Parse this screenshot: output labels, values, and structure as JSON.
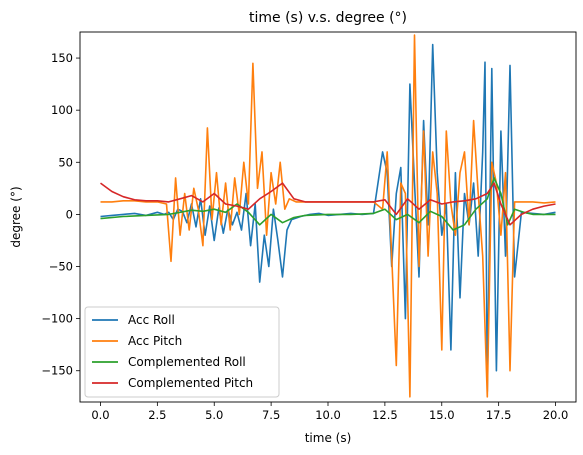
{
  "chart_data": {
    "type": "line",
    "title": "time (s) v.s. degree (°)",
    "xlabel": "time (s)",
    "ylabel": "degree (°)",
    "xlim": [
      -0.9,
      20.9
    ],
    "ylim": [
      -180,
      175
    ],
    "xticks": [
      0.0,
      2.5,
      5.0,
      7.5,
      10.0,
      12.5,
      15.0,
      17.5,
      20.0
    ],
    "xtick_labels": [
      "0.0",
      "2.5",
      "5.0",
      "7.5",
      "10.0",
      "12.5",
      "15.0",
      "17.5",
      "20.0"
    ],
    "yticks": [
      -150,
      -100,
      -50,
      0,
      50,
      100,
      150
    ],
    "ytick_labels": [
      "−150",
      "−100",
      "−50",
      "0",
      "50",
      "100",
      "150"
    ],
    "grid": false,
    "legend_position": "lower-left",
    "series": [
      {
        "name": "Acc Roll",
        "color": "#1f77b4",
        "x": [
          0,
          0.5,
          1,
          1.5,
          2,
          2.5,
          2.8,
          3.0,
          3.2,
          3.4,
          3.6,
          3.8,
          4.0,
          4.2,
          4.4,
          4.6,
          4.8,
          5.0,
          5.2,
          5.4,
          5.6,
          5.8,
          6.0,
          6.2,
          6.4,
          6.6,
          6.8,
          7.0,
          7.2,
          7.4,
          7.6,
          7.8,
          8.0,
          8.2,
          8.4,
          8.8,
          9.2,
          9.6,
          10.0,
          10.5,
          11.0,
          11.5,
          12.0,
          12.4,
          12.6,
          12.8,
          13.0,
          13.2,
          13.4,
          13.6,
          13.8,
          14.0,
          14.2,
          14.4,
          14.6,
          14.8,
          15.0,
          15.2,
          15.4,
          15.6,
          15.8,
          16.0,
          16.2,
          16.4,
          16.6,
          16.8,
          16.9,
          17.0,
          17.2,
          17.4,
          17.6,
          17.8,
          18.0,
          18.2,
          18.5,
          19.0,
          19.5,
          20.0
        ],
        "y": [
          -2,
          -1,
          0,
          1,
          -1,
          2,
          0,
          2,
          -5,
          5,
          3,
          -8,
          10,
          -12,
          15,
          -20,
          8,
          -25,
          6,
          -18,
          5,
          -10,
          2,
          -15,
          20,
          -30,
          10,
          -65,
          -20,
          -50,
          5,
          -25,
          -60,
          -15,
          -5,
          -2,
          0,
          1,
          -1,
          0,
          1,
          0,
          1,
          60,
          40,
          -50,
          20,
          45,
          -100,
          125,
          30,
          -60,
          90,
          -10,
          163,
          40,
          -20,
          10,
          -130,
          40,
          -80,
          20,
          -10,
          30,
          -40,
          60,
          146,
          -170,
          140,
          -150,
          80,
          -40,
          143,
          -60,
          2,
          1,
          0,
          2
        ]
      },
      {
        "name": "Acc Pitch",
        "color": "#ff7f0e",
        "x": [
          0,
          0.5,
          1,
          1.5,
          2,
          2.5,
          2.9,
          3.1,
          3.3,
          3.5,
          3.7,
          3.9,
          4.1,
          4.3,
          4.5,
          4.7,
          4.9,
          5.1,
          5.3,
          5.5,
          5.7,
          5.9,
          6.1,
          6.3,
          6.5,
          6.7,
          6.9,
          7.1,
          7.3,
          7.5,
          7.7,
          7.9,
          8.1,
          8.3,
          8.6,
          9.0,
          9.5,
          10.0,
          10.5,
          11.0,
          11.5,
          12.0,
          12.4,
          12.6,
          12.8,
          13.0,
          13.2,
          13.4,
          13.6,
          13.8,
          14.0,
          14.2,
          14.4,
          14.6,
          14.8,
          15.0,
          15.2,
          15.4,
          15.6,
          15.8,
          16.0,
          16.2,
          16.4,
          16.6,
          16.8,
          17.0,
          17.2,
          17.4,
          17.6,
          17.8,
          18.0,
          18.2,
          18.5,
          19.0,
          19.5,
          20.0
        ],
        "y": [
          12,
          12,
          13,
          13,
          12,
          12,
          10,
          -45,
          35,
          -20,
          20,
          -15,
          25,
          5,
          -30,
          83,
          -5,
          40,
          -10,
          30,
          -15,
          35,
          0,
          50,
          10,
          145,
          25,
          60,
          -20,
          40,
          10,
          50,
          5,
          15,
          12,
          12,
          12,
          12,
          12,
          12,
          12,
          12,
          5,
          60,
          -40,
          -145,
          30,
          20,
          -175,
          172,
          -50,
          80,
          -40,
          60,
          20,
          -130,
          80,
          10,
          -20,
          40,
          60,
          -10,
          90,
          20,
          -40,
          -175,
          50,
          30,
          -20,
          40,
          -150,
          12,
          12,
          12,
          11,
          12
        ]
      },
      {
        "name": "Complemented Roll",
        "color": "#2ca02c",
        "x": [
          0,
          1,
          2,
          3,
          3.5,
          4.0,
          4.5,
          5.0,
          5.5,
          6.0,
          6.5,
          7.0,
          7.5,
          8.0,
          8.5,
          9.0,
          10.0,
          11.0,
          12.0,
          12.5,
          13.0,
          13.5,
          14.0,
          14.5,
          15.0,
          15.5,
          16.0,
          16.5,
          17.0,
          17.3,
          17.6,
          17.9,
          18.2,
          18.6,
          19.0,
          20.0
        ],
        "y": [
          -4,
          -2,
          -1,
          0,
          2,
          4,
          3,
          5,
          2,
          10,
          2,
          -10,
          0,
          -8,
          -3,
          -1,
          0,
          0,
          1,
          5,
          -5,
          0,
          -8,
          3,
          -2,
          -15,
          -10,
          5,
          15,
          35,
          20,
          -10,
          5,
          2,
          0,
          0
        ]
      },
      {
        "name": "Complemented Pitch",
        "color": "#d62728",
        "x": [
          0,
          0.5,
          1,
          1.5,
          2,
          2.5,
          3.0,
          3.5,
          4.0,
          4.5,
          5.0,
          5.5,
          6.0,
          6.5,
          7.0,
          7.5,
          8.0,
          8.5,
          9.0,
          10.0,
          11.0,
          12.0,
          12.5,
          13.0,
          13.5,
          14.0,
          14.5,
          15.0,
          15.5,
          16.0,
          16.5,
          17.0,
          17.3,
          17.6,
          18.0,
          18.5,
          19.0,
          19.5,
          20.0
        ],
        "y": [
          30,
          22,
          17,
          14,
          13,
          13,
          12,
          15,
          18,
          12,
          20,
          10,
          8,
          5,
          15,
          22,
          30,
          15,
          12,
          12,
          12,
          12,
          14,
          0,
          15,
          5,
          14,
          10,
          12,
          13,
          15,
          20,
          30,
          10,
          -10,
          0,
          5,
          8,
          10
        ]
      }
    ]
  }
}
